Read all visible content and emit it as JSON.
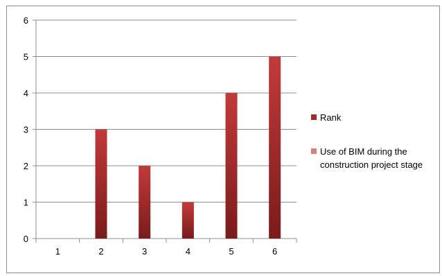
{
  "chart_data": {
    "type": "bar",
    "title": "",
    "xlabel": "",
    "ylabel": "",
    "categories": [
      "1",
      "2",
      "3",
      "4",
      "5",
      "6"
    ],
    "ylim": [
      0,
      6
    ],
    "yticks": [
      "0",
      "1",
      "2",
      "3",
      "4",
      "5",
      "6"
    ],
    "grid": true,
    "legend_position": "right",
    "series": [
      {
        "name": "Rank",
        "values": [
          0,
          3,
          2,
          1,
          4,
          5
        ],
        "color": "#a32a2a"
      },
      {
        "name": "Use of BIM during the construction project stage",
        "values": [
          null,
          null,
          null,
          null,
          null,
          null
        ],
        "color": "#d78080"
      }
    ]
  }
}
